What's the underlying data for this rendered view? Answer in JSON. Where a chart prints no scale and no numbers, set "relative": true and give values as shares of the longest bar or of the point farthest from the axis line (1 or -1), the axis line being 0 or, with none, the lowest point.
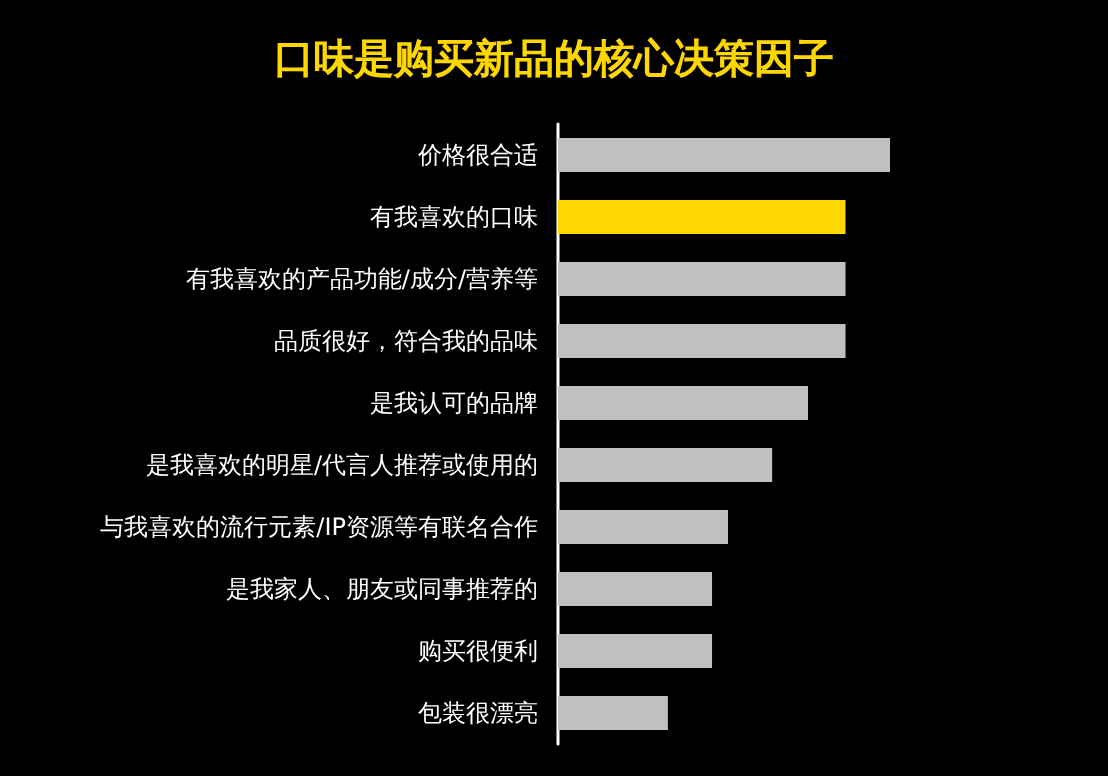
{
  "chart_data": {
    "type": "bar",
    "orientation": "horizontal",
    "relative": true,
    "title": "口味是购买新品的核心决策因子",
    "categories": [
      "价格很合适",
      "有我喜欢的口味",
      "有我喜欢的产品功能/成分/营养等",
      "品质很好，符合我的品味",
      "是我认可的品牌",
      "是我喜欢的明星/代言人推荐或使用的",
      "与我喜欢的流行元素/IP资源等有联名合作",
      "是我家人、朋友或同事推荐的",
      "购买很便利",
      "包装很漂亮"
    ],
    "values": [
      1,
      0.866,
      0.866,
      0.866,
      0.753,
      0.645,
      0.512,
      0.464,
      0.464,
      0.331
    ],
    "colors": [
      "#c0c0c0",
      "#ffd700",
      "#c0c0c0",
      "#c0c0c0",
      "#c0c0c0",
      "#c0c0c0",
      "#c0c0c0",
      "#c0c0c0",
      "#c0c0c0",
      "#c0c0c0"
    ],
    "data_labels": false
  }
}
